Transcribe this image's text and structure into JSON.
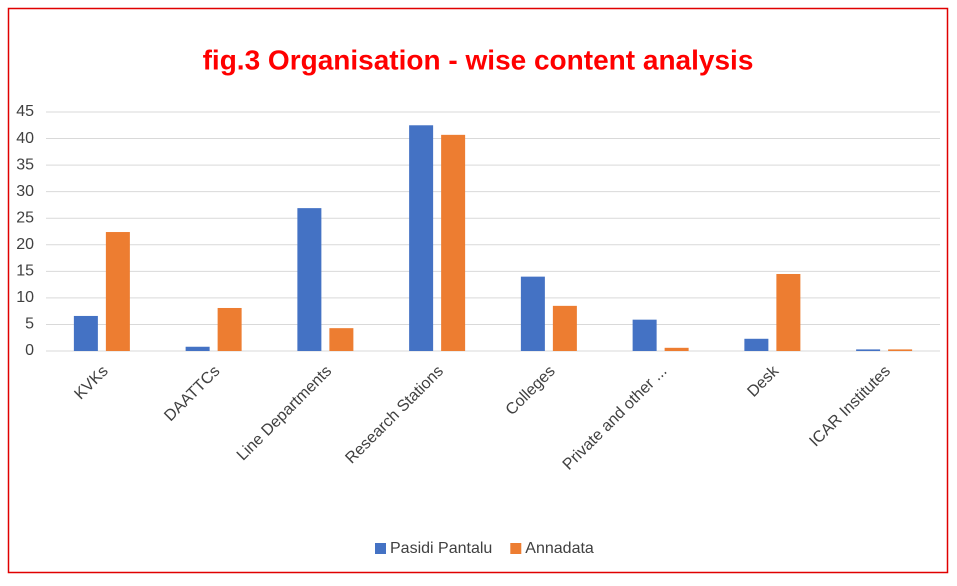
{
  "chart_data": {
    "type": "bar",
    "title": "fig.3 Organisation - wise content analysis",
    "categories": [
      "KVKs",
      "DAATTCs",
      "Line Departments",
      "Research Stations",
      "Colleges",
      "Private and other ...",
      "Desk",
      "ICAR Institutes"
    ],
    "series": [
      {
        "name": "Pasidi Pantalu",
        "color": "#4472c4",
        "values": [
          6.6,
          0.8,
          26.9,
          42.5,
          14,
          5.9,
          2.3,
          0.3
        ]
      },
      {
        "name": "Annadata",
        "color": "#ed7d31",
        "values": [
          22.4,
          8.1,
          4.3,
          40.7,
          8.5,
          0.6,
          14.5,
          0.3
        ]
      }
    ],
    "ylim": [
      0,
      45
    ],
    "yticks": [
      0,
      5,
      10,
      15,
      20,
      25,
      30,
      35,
      40,
      45
    ],
    "grid": true,
    "legend": "bottom"
  }
}
